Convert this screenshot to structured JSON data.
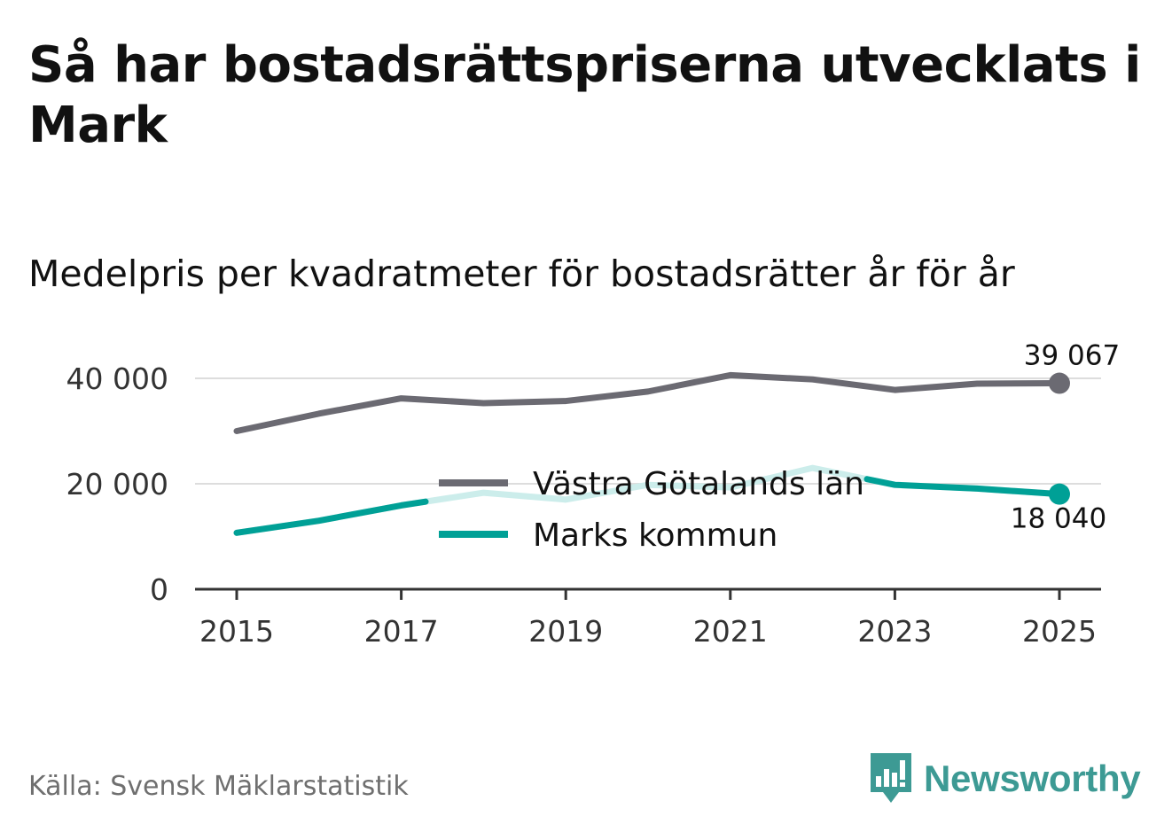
{
  "header": {
    "title": "Så har bostadsrättspriserna utvecklats i Mark",
    "subtitle": "Medelpris per kvadratmeter för bostadsrätter år för år"
  },
  "footer": {
    "source": "Källa: Svensk Mäklarstatistik",
    "brand": "Newsworthy"
  },
  "colors": {
    "lan": "#6b6a72",
    "kommun": "#00a096",
    "kommun_faded": "#ccedeb",
    "grid": "#dddddd",
    "axis": "#333333",
    "text": "#333333"
  },
  "chart_data": {
    "type": "line",
    "x": [
      2015,
      2016,
      2017,
      2018,
      2019,
      2020,
      2021,
      2022,
      2023,
      2024,
      2025
    ],
    "xticks": [
      "2015",
      "2017",
      "2019",
      "2021",
      "2023",
      "2025"
    ],
    "yticks": [
      "0",
      "20 000",
      "40 000"
    ],
    "ylim": [
      0,
      45000
    ],
    "series": [
      {
        "key": "lan",
        "name": "Västra Götalands län",
        "values": [
          30000,
          33300,
          36200,
          35300,
          35700,
          37500,
          40600,
          39800,
          37800,
          39000,
          39067
        ],
        "end_label": "39 067"
      },
      {
        "key": "kommun",
        "name": "Marks kommun",
        "values": [
          10700,
          13000,
          15900,
          18300,
          17000,
          19800,
          19300,
          23000,
          19800,
          19100,
          18040
        ],
        "end_label": "18 040"
      }
    ],
    "legend": "center"
  }
}
